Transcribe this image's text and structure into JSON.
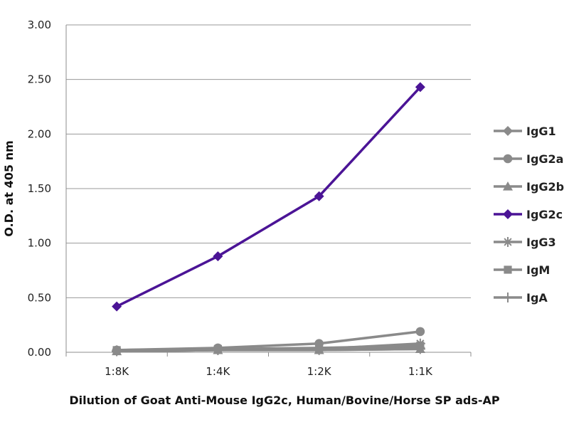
{
  "chart_data": {
    "type": "line",
    "title": "",
    "xlabel": "Dilution of Goat Anti-Mouse IgG2c, Human/Bovine/Horse SP ads-AP",
    "ylabel": "O.D. at 405 nm",
    "categories": [
      "1:8K",
      "1:4K",
      "1:2K",
      "1:1K"
    ],
    "ylim": [
      0,
      3.0
    ],
    "yticks": [
      "0.00",
      "0.50",
      "1.00",
      "1.50",
      "2.00",
      "2.50",
      "3.00"
    ],
    "grid": true,
    "legend_position": "right",
    "series": [
      {
        "name": "IgG1",
        "marker": "diamond",
        "color": "#8a8a8a",
        "values": [
          0.02,
          0.03,
          0.03,
          0.04
        ]
      },
      {
        "name": "IgG2a",
        "marker": "circle",
        "color": "#8a8a8a",
        "values": [
          0.02,
          0.04,
          0.08,
          0.19
        ]
      },
      {
        "name": "IgG2b",
        "marker": "triangle",
        "color": "#8a8a8a",
        "values": [
          0.01,
          0.02,
          0.02,
          0.03
        ]
      },
      {
        "name": "IgG2c",
        "marker": "diamond",
        "color": "#4b1496",
        "values": [
          0.42,
          0.88,
          1.43,
          2.43
        ]
      },
      {
        "name": "IgG3",
        "marker": "star",
        "color": "#8a8a8a",
        "values": [
          0.01,
          0.02,
          0.03,
          0.08
        ]
      },
      {
        "name": "IgM",
        "marker": "square",
        "color": "#8a8a8a",
        "values": [
          0.02,
          0.03,
          0.04,
          0.06
        ]
      },
      {
        "name": "IgA",
        "marker": "plus",
        "color": "#8a8a8a",
        "values": [
          0.01,
          0.02,
          0.02,
          0.03
        ]
      }
    ]
  }
}
